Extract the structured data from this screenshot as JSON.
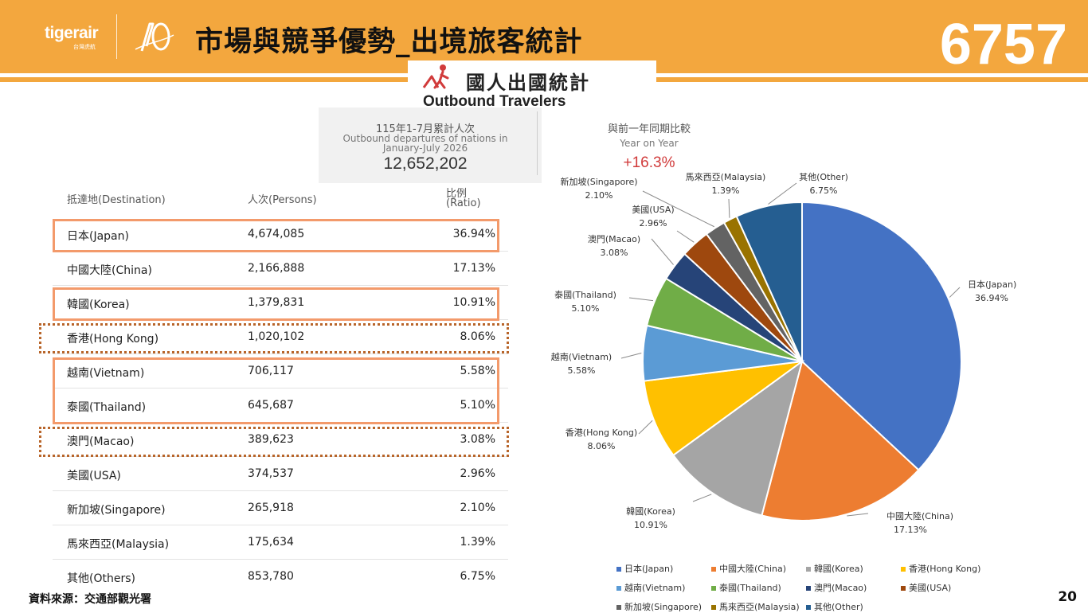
{
  "header": {
    "logo": "tigerair",
    "logo_sub": "台灣虎航",
    "title": "市場與競爭優勢_出境旅客統計",
    "stock_code": "6757"
  },
  "banner": {
    "title_zh": "國人出國統計",
    "title_en": "Outbound Travelers"
  },
  "stats": {
    "left_zh": "115年1-7月累計人次",
    "left_en1": "Outbound departures of nations in",
    "left_en2": "January-July 2026",
    "left_value": "12,652,202",
    "right_zh": "與前一年同期比較",
    "right_en": "Year on Year",
    "right_value": "+16.3%"
  },
  "table": {
    "headers": {
      "destination": "抵達地(Destination)",
      "persons": "人次(Persons)",
      "ratio1": "比例",
      "ratio2": "(Ratio)"
    },
    "rows": [
      {
        "dest": "日本(Japan)",
        "persons": "4,674,085",
        "ratio": "36.94%"
      },
      {
        "dest": "中國大陸(China)",
        "persons": "2,166,888",
        "ratio": "17.13%"
      },
      {
        "dest": "韓國(Korea)",
        "persons": "1,379,831",
        "ratio": "10.91%"
      },
      {
        "dest": "香港(Hong Kong)",
        "persons": "1,020,102",
        "ratio": "8.06%"
      },
      {
        "dest": "越南(Vietnam)",
        "persons": "706,117",
        "ratio": "5.58%"
      },
      {
        "dest": "泰國(Thailand)",
        "persons": "645,687",
        "ratio": "5.10%"
      },
      {
        "dest": "澳門(Macao)",
        "persons": "389,623",
        "ratio": "3.08%"
      },
      {
        "dest": "美國(USA)",
        "persons": "374,537",
        "ratio": "2.96%"
      },
      {
        "dest": "新加坡(Singapore)",
        "persons": "265,918",
        "ratio": "2.10%"
      },
      {
        "dest": "馬來西亞(Malaysia)",
        "persons": "175,634",
        "ratio": "1.39%"
      },
      {
        "dest": "其他(Others)",
        "persons": "853,780",
        "ratio": "6.75%"
      }
    ]
  },
  "chart_data": {
    "type": "pie",
    "start_angle_deg": 0,
    "direction": "clockwise",
    "legend_position": "bottom",
    "slices": [
      {
        "label": "日本(Japan)",
        "value": 36.94,
        "pct": "36.94%",
        "color": "#4472C4"
      },
      {
        "label": "中國大陸(China)",
        "value": 17.13,
        "pct": "17.13%",
        "color": "#ED7D31"
      },
      {
        "label": "韓國(Korea)",
        "value": 10.91,
        "pct": "10.91%",
        "color": "#A5A5A5"
      },
      {
        "label": "香港(Hong Kong)",
        "value": 8.06,
        "pct": "8.06%",
        "color": "#FFC000"
      },
      {
        "label": "越南(Vietnam)",
        "value": 5.58,
        "pct": "5.58%",
        "color": "#5B9BD5"
      },
      {
        "label": "泰國(Thailand)",
        "value": 5.1,
        "pct": "5.10%",
        "color": "#70AD47"
      },
      {
        "label": "澳門(Macao)",
        "value": 3.08,
        "pct": "3.08%",
        "color": "#264478"
      },
      {
        "label": "美國(USA)",
        "value": 2.96,
        "pct": "2.96%",
        "color": "#9E480E"
      },
      {
        "label": "新加坡(Singapore)",
        "value": 2.1,
        "pct": "2.10%",
        "color": "#636363"
      },
      {
        "label": "馬來西亞(Malaysia)",
        "value": 1.39,
        "pct": "1.39%",
        "color": "#997300"
      },
      {
        "label": "其他(Other)",
        "value": 6.75,
        "pct": "6.75%",
        "color": "#255E91"
      }
    ]
  },
  "footer": {
    "source": "資料來源：交通部觀光署",
    "page": "20"
  }
}
